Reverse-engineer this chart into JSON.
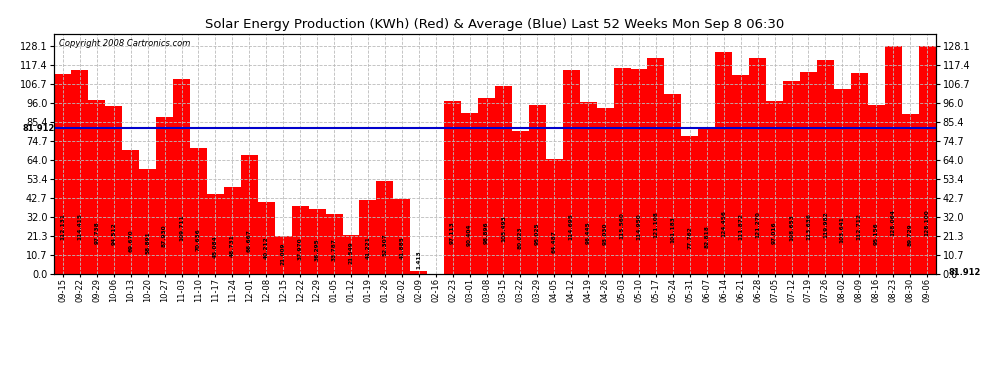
{
  "title": "Solar Energy Production (KWh) (Red) & Average (Blue) Last 52 Weeks Mon Sep 8 06:30",
  "copyright": "Copyright 2008 Cartronics.com",
  "average": 81.912,
  "bar_color": "#ff0000",
  "avg_line_color": "#0000cc",
  "background_color": "#ffffff",
  "plot_bg_color": "#ffffff",
  "grid_color": "#bbbbbb",
  "ylim": [
    0,
    135
  ],
  "yticks": [
    0.0,
    10.7,
    21.3,
    32.0,
    42.7,
    53.4,
    64.0,
    74.7,
    85.4,
    96.0,
    106.7,
    117.4,
    128.1
  ],
  "categories": [
    "09-15",
    "09-22",
    "09-29",
    "10-06",
    "10-13",
    "10-20",
    "10-27",
    "11-03",
    "11-10",
    "11-17",
    "11-24",
    "12-01",
    "12-08",
    "12-15",
    "12-22",
    "12-29",
    "01-05",
    "01-12",
    "01-19",
    "01-26",
    "02-02",
    "02-09",
    "02-16",
    "02-23",
    "03-01",
    "03-08",
    "03-15",
    "03-22",
    "03-29",
    "04-05",
    "04-12",
    "04-19",
    "04-26",
    "05-03",
    "05-10",
    "05-17",
    "05-24",
    "05-31",
    "06-07",
    "06-14",
    "06-21",
    "06-28",
    "07-05",
    "07-12",
    "07-19",
    "07-26",
    "08-02",
    "08-09",
    "08-16",
    "08-23",
    "08-30",
    "09-06"
  ],
  "values": [
    112.131,
    114.415,
    97.738,
    94.512,
    69.67,
    58.891,
    87.93,
    109.711,
    70.636,
    45.084,
    48.731,
    66.667,
    40.212,
    21.009,
    37.97,
    36.295,
    33.787,
    21.549,
    41.221,
    52.307,
    41.885,
    1.413,
    0.0,
    97.113,
    90.404,
    98.896,
    105.493,
    80.023,
    95.025,
    64.487,
    114.695,
    96.445,
    93.03,
    115.56,
    114.95,
    121.108,
    101.183,
    77.762,
    82.818,
    124.456,
    111.872,
    121.27,
    97.016,
    108.653,
    113.636,
    119.982,
    103.641,
    112.712,
    95.156,
    128.064,
    89.729,
    128.1
  ]
}
